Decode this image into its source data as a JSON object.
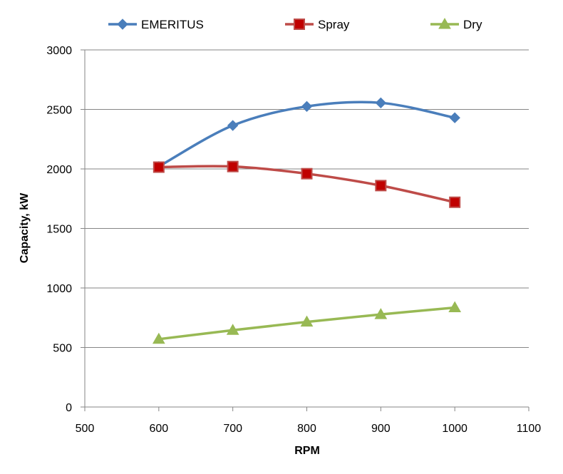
{
  "chart_data": {
    "type": "line",
    "title": "",
    "xlabel": "RPM",
    "ylabel": "Capacity, kW",
    "xlim": [
      500,
      1100
    ],
    "ylim": [
      0,
      3000
    ],
    "x_ticks": [
      500,
      600,
      700,
      800,
      900,
      1000,
      1100
    ],
    "y_ticks": [
      0,
      500,
      1000,
      1500,
      2000,
      2500,
      3000
    ],
    "grid": {
      "horizontal": true,
      "vertical": false
    },
    "legend_position": "top",
    "smooth": true,
    "series": [
      {
        "name": "EMERITUS",
        "color": "#4a7ebb",
        "marker": "diamond",
        "x": [
          600,
          700,
          800,
          900,
          1000
        ],
        "y": [
          2020,
          2365,
          2525,
          2555,
          2430
        ]
      },
      {
        "name": "Spray",
        "color": "#be4b48",
        "marker_fill": "#c00000",
        "marker": "square",
        "x": [
          600,
          700,
          800,
          900,
          1000
        ],
        "y": [
          2015,
          2020,
          1960,
          1860,
          1720
        ]
      },
      {
        "name": "Dry",
        "color": "#98b954",
        "marker": "triangle",
        "x": [
          600,
          700,
          800,
          900,
          1000
        ],
        "y": [
          570,
          645,
          715,
          778,
          835
        ]
      }
    ]
  }
}
